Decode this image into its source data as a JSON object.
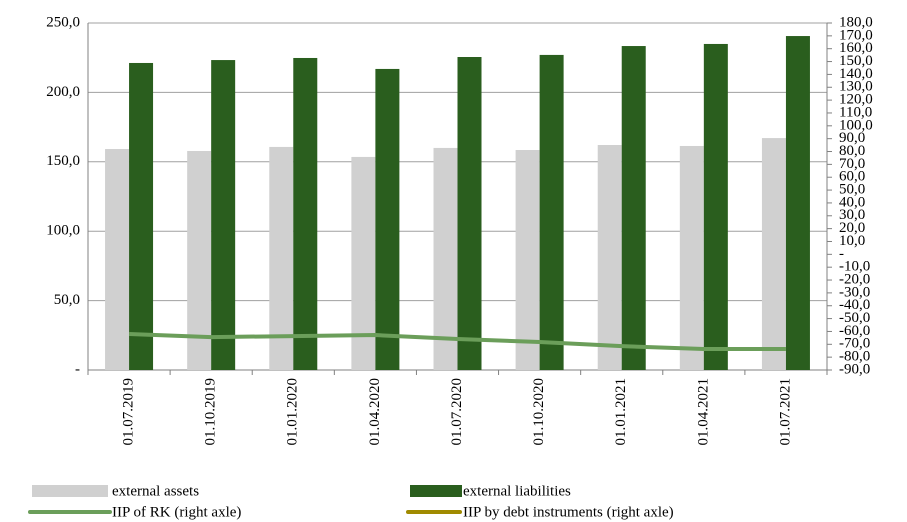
{
  "chart_data": {
    "type": "bar",
    "categories": [
      "01.07.2019",
      "01.10.2019",
      "01.01.2020",
      "01.04.2020",
      "01.07.2020",
      "01.10.2020",
      "01.01.2021",
      "01.04.2021",
      "01.07.2021"
    ],
    "series": [
      {
        "name": "external assets",
        "type": "bar",
        "color": "#d0d0d0",
        "values": [
          159.2,
          157.8,
          160.7,
          153.5,
          160.0,
          158.5,
          162.1,
          161.4,
          167.1
        ]
      },
      {
        "name": "external liabilities",
        "type": "bar",
        "color": "#2a5e1e",
        "values": [
          221.2,
          223.3,
          224.8,
          216.9,
          225.5,
          227.0,
          233.4,
          234.9,
          240.6
        ]
      },
      {
        "name": "IIP of RK (right axle)",
        "type": "line",
        "axis": "y2",
        "color": "#6b9e5a",
        "values": [
          -62.0,
          -64.4,
          -63.6,
          -62.8,
          -65.9,
          -68.2,
          -71.4,
          -73.7,
          -73.7
        ]
      },
      {
        "name": "IIP by debt instruments (right axle)",
        "type": "line",
        "axis": "y2",
        "color": "#a08a00",
        "values": [
          null,
          null,
          null,
          null,
          null,
          null,
          null,
          null,
          null
        ]
      }
    ],
    "ylim": [
      0,
      250
    ],
    "yticks": [
      {
        "value": 0,
        "label": "-"
      },
      {
        "value": 50,
        "label": "50,0"
      },
      {
        "value": 100,
        "label": "100,0"
      },
      {
        "value": 150,
        "label": "150,0"
      },
      {
        "value": 200,
        "label": "200,0"
      },
      {
        "value": 250,
        "label": "250,0"
      }
    ],
    "y2lim": [
      -90,
      180
    ],
    "y2ticks": [
      {
        "value": -90,
        "label": "-90,0"
      },
      {
        "value": -80,
        "label": "-80,0"
      },
      {
        "value": -70,
        "label": "-70,0"
      },
      {
        "value": -60,
        "label": "-60,0"
      },
      {
        "value": -50,
        "label": "-50,0"
      },
      {
        "value": -40,
        "label": "-40,0"
      },
      {
        "value": -30,
        "label": "-30,0"
      },
      {
        "value": -20,
        "label": "-20,0"
      },
      {
        "value": -10,
        "label": "-10,0"
      },
      {
        "value": 0,
        "label": "-"
      },
      {
        "value": 10,
        "label": "10,0"
      },
      {
        "value": 20,
        "label": "20,0"
      },
      {
        "value": 30,
        "label": "30,0"
      },
      {
        "value": 40,
        "label": "40,0"
      },
      {
        "value": 50,
        "label": "50,0"
      },
      {
        "value": 60,
        "label": "60,0"
      },
      {
        "value": 70,
        "label": "70,0"
      },
      {
        "value": 80,
        "label": "80,0"
      },
      {
        "value": 90,
        "label": "90,0"
      },
      {
        "value": 100,
        "label": "100,0"
      },
      {
        "value": 110,
        "label": "110,0"
      },
      {
        "value": 120,
        "label": "120,0"
      },
      {
        "value": 130,
        "label": "130,0"
      },
      {
        "value": 140,
        "label": "140,0"
      },
      {
        "value": 150,
        "label": "150,0"
      },
      {
        "value": 160,
        "label": "160,0"
      },
      {
        "value": 170,
        "label": "170,0"
      },
      {
        "value": 180,
        "label": "180,0"
      }
    ],
    "grid": true
  }
}
